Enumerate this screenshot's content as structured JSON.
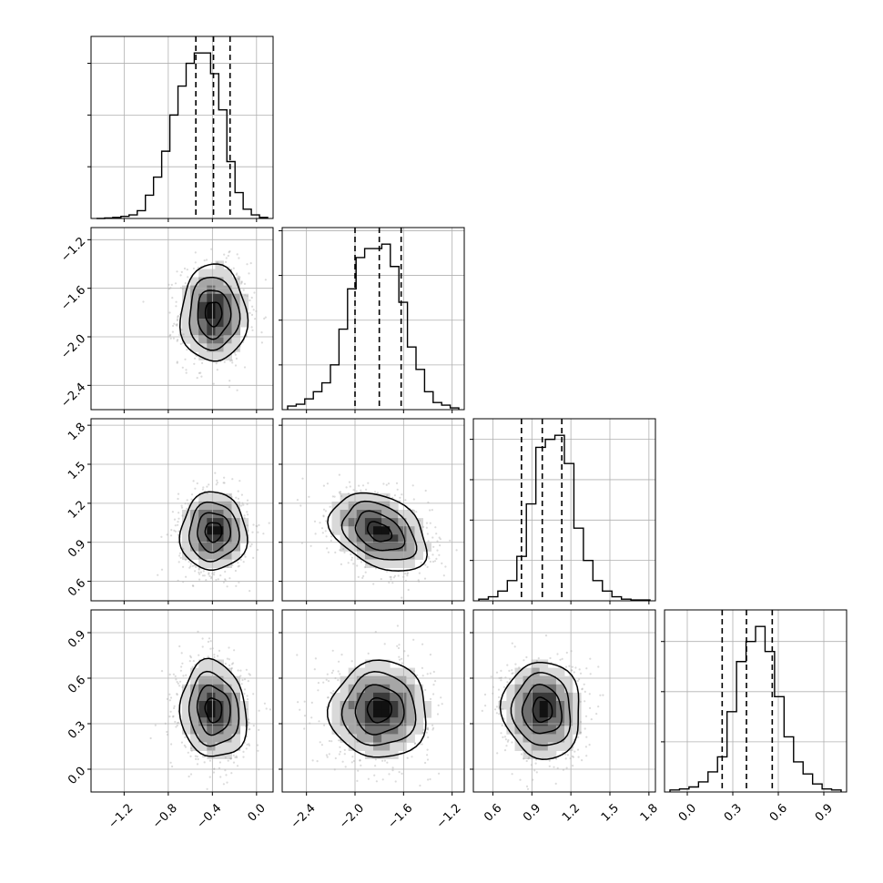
{
  "chart_data": {
    "type": "corner",
    "parameters": [
      {
        "range": [
          -1.5,
          0.15
        ],
        "ticks": [
          -1.2,
          -0.8,
          -0.4,
          0.0
        ],
        "tick_labels": [
          "−1.2",
          "−0.8",
          "−0.4",
          "0.0"
        ],
        "quantiles": [
          -0.55,
          -0.39,
          -0.24
        ],
        "hist_counts": [
          0,
          1,
          2,
          4,
          7,
          15,
          45,
          80,
          130,
          200,
          256,
          300,
          320,
          320,
          280,
          210,
          110,
          50,
          18,
          7,
          2
        ]
      },
      {
        "range": [
          -2.6,
          -1.1
        ],
        "ticks": [
          -2.4,
          -2.0,
          -1.6,
          -1.2
        ],
        "tick_labels": [
          "−2.4",
          "−2.0",
          "−1.6",
          "−1.2"
        ],
        "quantiles": [
          -2.0,
          -1.8,
          -1.62
        ],
        "hist_counts": [
          4,
          6,
          12,
          20,
          30,
          50,
          90,
          135,
          170,
          180,
          180,
          185,
          160,
          120,
          70,
          45,
          20,
          8,
          5,
          2
        ]
      },
      {
        "range": [
          0.45,
          1.85
        ],
        "ticks": [
          0.6,
          0.9,
          1.2,
          1.5,
          1.8
        ],
        "tick_labels": [
          "0.6",
          "0.9",
          "1.2",
          "1.5",
          "1.8"
        ],
        "quantiles": [
          0.82,
          0.98,
          1.13
        ],
        "hist_counts": [
          2,
          5,
          12,
          25,
          55,
          120,
          190,
          200,
          205,
          170,
          90,
          50,
          25,
          12,
          5,
          2,
          1,
          1
        ]
      },
      {
        "range": [
          -0.15,
          1.05
        ],
        "ticks": [
          0.0,
          0.3,
          0.6,
          0.9
        ],
        "tick_labels": [
          "0.0",
          "0.3",
          "0.6",
          "0.9"
        ],
        "quantiles": [
          0.23,
          0.39,
          0.56
        ],
        "hist_counts": [
          2,
          3,
          5,
          10,
          20,
          35,
          80,
          130,
          150,
          165,
          140,
          95,
          55,
          30,
          18,
          8,
          3,
          2
        ]
      }
    ],
    "pairs": [
      {
        "x": 0,
        "y": 1,
        "center": [
          -0.39,
          -1.81
        ],
        "sd": [
          0.15,
          0.2
        ],
        "rho": 0.0
      },
      {
        "x": 0,
        "y": 2,
        "center": [
          -0.39,
          0.98
        ],
        "sd": [
          0.15,
          0.15
        ],
        "rho": 0.0
      },
      {
        "x": 1,
        "y": 2,
        "center": [
          -1.8,
          0.98
        ],
        "sd": [
          0.2,
          0.15
        ],
        "rho": -0.35
      },
      {
        "x": 0,
        "y": 3,
        "center": [
          -0.39,
          0.39
        ],
        "sd": [
          0.15,
          0.16
        ],
        "rho": -0.1
      },
      {
        "x": 1,
        "y": 3,
        "center": [
          -1.8,
          0.39
        ],
        "sd": [
          0.2,
          0.16
        ],
        "rho": 0.0
      },
      {
        "x": 2,
        "y": 3,
        "center": [
          0.98,
          0.39
        ],
        "sd": [
          0.15,
          0.16
        ],
        "rho": -0.05
      }
    ],
    "contour_levels_sigma": [
      0.5,
      1.0,
      1.5,
      2.0
    ],
    "grid": true,
    "colors": {
      "axes": "#000000",
      "grid": "#b0b0b0",
      "points": "#999999",
      "lines": "#000000"
    }
  }
}
